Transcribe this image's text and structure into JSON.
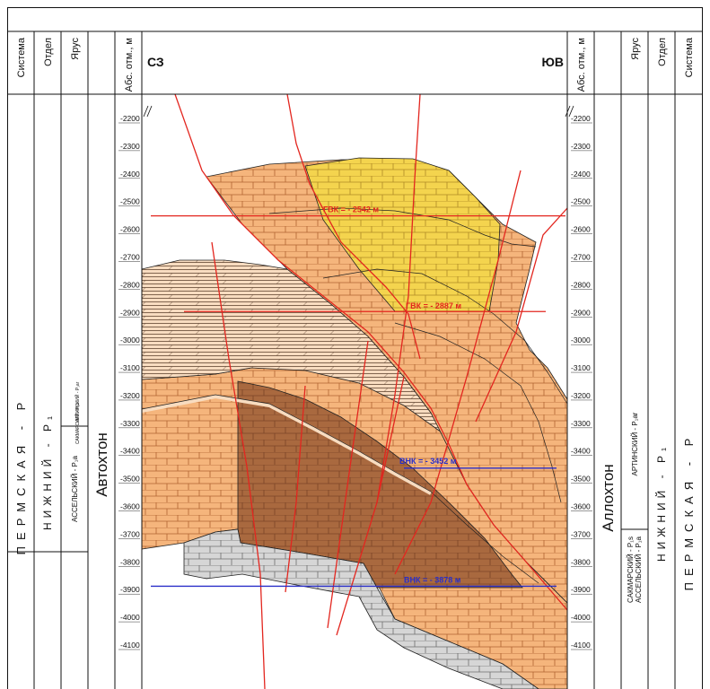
{
  "header": {
    "left_columns": [
      "Система",
      "Отдел",
      "Ярус"
    ],
    "depth_label": "Абс. отм., м",
    "right_columns": [
      "Ярус",
      "Отдел",
      "Система"
    ],
    "left_direction": "СЗ",
    "right_direction": "ЮВ"
  },
  "depth_scale": {
    "ticks": [
      -2200,
      -2300,
      -2400,
      -2500,
      -2600,
      -2700,
      -2800,
      -2900,
      -3000,
      -3100,
      -3200,
      -3300,
      -3400,
      -3500,
      -3600,
      -3700,
      -3800,
      -3900,
      -4000,
      -4100
    ]
  },
  "left_stratigraphy": {
    "system": "ПЕРМСКАЯ - P",
    "series": "НИЖНИЙ - P₁",
    "stage_top": "АРТИНСКИЙ - P₁ar",
    "stage_middle": "САКМАРСКИЙ - P₁s",
    "stage_main": "АССЕЛЬСКИЙ - P₁a",
    "unit": "Автохтон"
  },
  "right_stratigraphy": {
    "system": "ПЕРМСКАЯ - P",
    "series": "НИЖНИЙ - P₁",
    "stage_top": "АРТИНСКИЙ - P₁ar",
    "stage_lower_1": "САКМАРСКИЙ - P₁s",
    "stage_lower_2": "АССЕЛЬСКИЙ - P₁a",
    "unit": "Аллохтон"
  },
  "contacts": [
    {
      "label": "ГВК = - 2542 м",
      "depth": -2542,
      "color": "#e3261f"
    },
    {
      "label": "ГВК = - 2887 м",
      "depth": -2887,
      "color": "#e3261f"
    },
    {
      "label": "ВНК = - 3452 м",
      "depth": -3452,
      "color": "#2a2fc8"
    },
    {
      "label": "ВНК = - 3878 м",
      "depth": -3878,
      "color": "#2a2fc8"
    }
  ]
}
